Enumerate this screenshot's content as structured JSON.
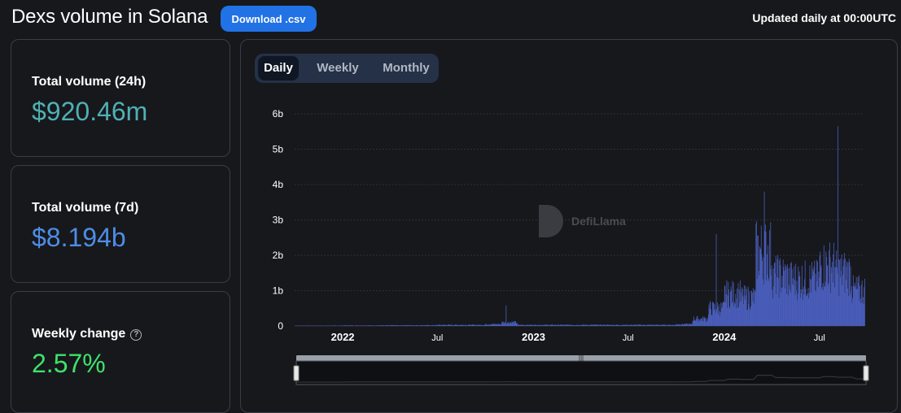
{
  "header": {
    "title": "Dexs volume in Solana",
    "download_label": "Download .csv",
    "updated_text": "Updated daily at 00:00UTC"
  },
  "stats": {
    "volume_24h_label": "Total volume (24h)",
    "volume_24h_value": "$920.46m",
    "volume_7d_label": "Total volume (7d)",
    "volume_7d_value": "$8.194b",
    "weekly_change_label": "Weekly change",
    "weekly_change_value": "2.57%"
  },
  "colors": {
    "volume_24h": "#4fb0b4",
    "volume_7d": "#4e8de8",
    "weekly_change": "#3ee26b",
    "bars": "#4a5ebc"
  },
  "tabs": [
    {
      "label": "Daily",
      "active": true
    },
    {
      "label": "Weekly",
      "active": false
    },
    {
      "label": "Monthly",
      "active": false
    }
  ],
  "watermark": {
    "text": "DefiLlama"
  },
  "chart_data": {
    "type": "bar",
    "title": "",
    "xlabel": "",
    "ylabel": "",
    "y_tick_labels": [
      "0",
      "1b",
      "2b",
      "3b",
      "4b",
      "5b",
      "6b"
    ],
    "y_ticks": [
      0,
      1,
      2,
      3,
      4,
      5,
      6
    ],
    "ylim": [
      0,
      6
    ],
    "y_unit": "b (USD)",
    "x_tick_labels": [
      "2022",
      "Jul",
      "2023",
      "Jul",
      "2024",
      "Jul"
    ],
    "x_tick_bold": [
      true,
      false,
      true,
      false,
      true,
      false
    ],
    "x_ticks": [
      "2022-01-01",
      "2022-07-01",
      "2023-01-01",
      "2023-07-01",
      "2024-01-01",
      "2024-07-01"
    ],
    "x_range": [
      "2021-10-01",
      "2024-09-25"
    ],
    "grid": "horizontal",
    "series": [
      {
        "values_by_month": [
          {
            "x": "2021-10",
            "y": 0.01
          },
          {
            "x": "2021-11",
            "y": 0.01
          },
          {
            "x": "2021-12",
            "y": 0.01
          },
          {
            "x": "2022-01",
            "y": 0.015
          },
          {
            "x": "2022-02",
            "y": 0.015
          },
          {
            "x": "2022-03",
            "y": 0.015
          },
          {
            "x": "2022-04",
            "y": 0.02
          },
          {
            "x": "2022-05",
            "y": 0.02
          },
          {
            "x": "2022-06",
            "y": 0.02
          },
          {
            "x": "2022-07",
            "y": 0.03
          },
          {
            "x": "2022-08",
            "y": 0.03
          },
          {
            "x": "2022-09",
            "y": 0.03
          },
          {
            "x": "2022-10",
            "y": 0.05
          },
          {
            "x": "2022-11",
            "y": 0.1
          },
          {
            "x": "2022-12",
            "y": 0.03
          },
          {
            "x": "2023-01",
            "y": 0.03
          },
          {
            "x": "2023-02",
            "y": 0.03
          },
          {
            "x": "2023-03",
            "y": 0.03
          },
          {
            "x": "2023-04",
            "y": 0.03
          },
          {
            "x": "2023-05",
            "y": 0.03
          },
          {
            "x": "2023-06",
            "y": 0.03
          },
          {
            "x": "2023-07",
            "y": 0.03
          },
          {
            "x": "2023-08",
            "y": 0.03
          },
          {
            "x": "2023-09",
            "y": 0.03
          },
          {
            "x": "2023-10",
            "y": 0.05
          },
          {
            "x": "2023-11",
            "y": 0.2
          },
          {
            "x": "2023-12",
            "y": 0.5
          },
          {
            "x": "2024-01",
            "y": 0.9
          },
          {
            "x": "2024-02",
            "y": 0.8
          },
          {
            "x": "2024-03",
            "y": 2.1
          },
          {
            "x": "2024-04",
            "y": 1.4
          },
          {
            "x": "2024-05",
            "y": 1.3
          },
          {
            "x": "2024-06",
            "y": 1.3
          },
          {
            "x": "2024-07",
            "y": 1.7
          },
          {
            "x": "2024-08",
            "y": 1.5
          },
          {
            "x": "2024-09",
            "y": 1.0
          }
        ],
        "peaks": [
          {
            "x": "2022-11-09",
            "y": 0.58
          },
          {
            "x": "2023-12-16",
            "y": 2.6
          },
          {
            "x": "2024-03-17",
            "y": 3.8
          },
          {
            "x": "2024-08-05",
            "y": 5.65
          }
        ]
      }
    ]
  }
}
